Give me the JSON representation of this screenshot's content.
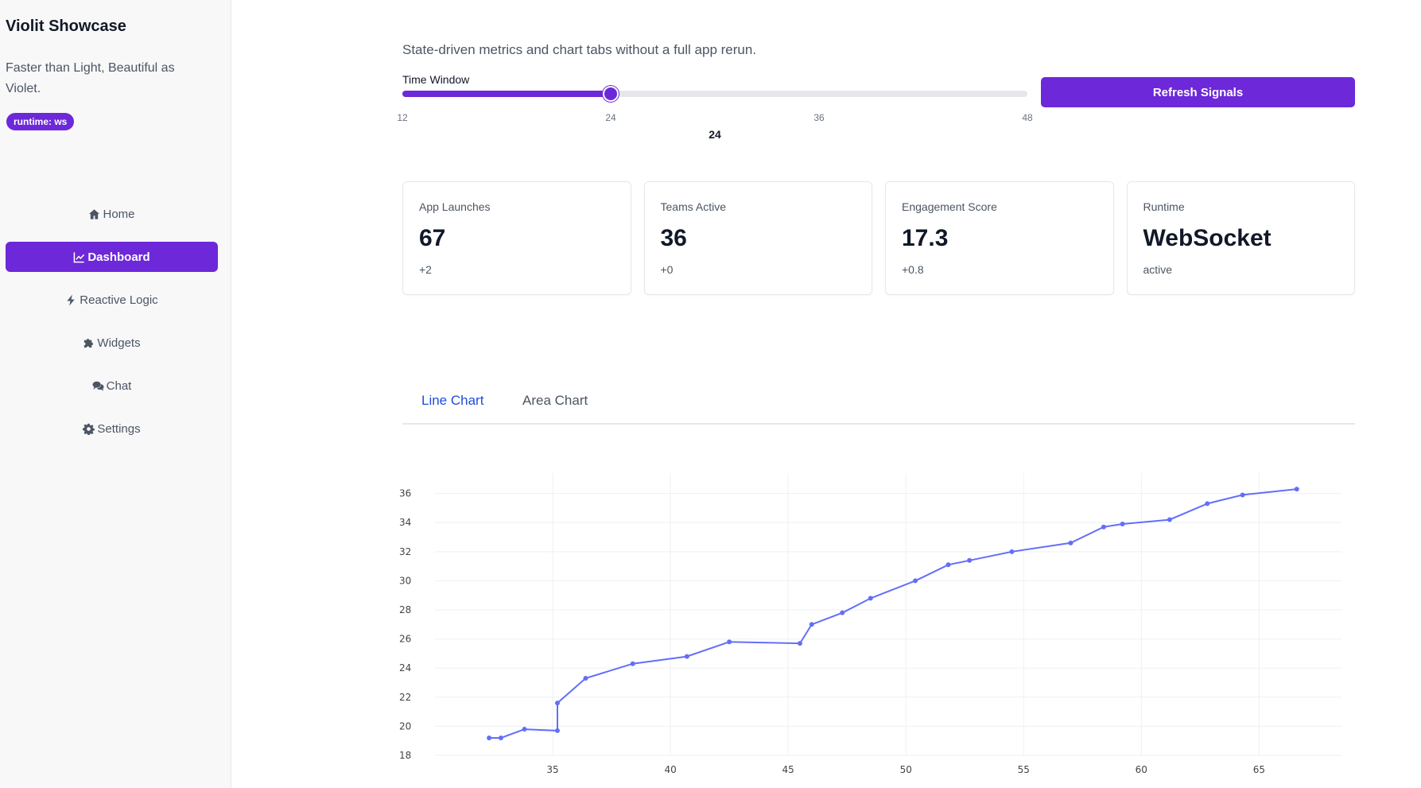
{
  "app": {
    "title": "Violit Showcase",
    "tagline": "Faster than Light, Beautiful as Violet.",
    "runtime_badge": "runtime: ws",
    "accent_color": "#6d28d9"
  },
  "nav": {
    "items": [
      {
        "label": "Home",
        "icon": "home-icon"
      },
      {
        "label": "Dashboard",
        "icon": "chart-line-icon",
        "active": true
      },
      {
        "label": "Reactive Logic",
        "icon": "bolt-icon"
      },
      {
        "label": "Widgets",
        "icon": "puzzle-icon"
      },
      {
        "label": "Chat",
        "icon": "comments-icon"
      },
      {
        "label": "Settings",
        "icon": "gear-icon"
      }
    ]
  },
  "main": {
    "subtitle": "State-driven metrics and chart tabs without a full app rerun.",
    "slider": {
      "label": "Time Window",
      "min": 12,
      "max": 48,
      "value": 24,
      "value_display": "24",
      "ticks": [
        "12",
        "24",
        "36",
        "48"
      ]
    },
    "refresh_button": "Refresh Signals",
    "metrics": [
      {
        "label": "App Launches",
        "value": "67",
        "delta": "+2"
      },
      {
        "label": "Teams Active",
        "value": "36",
        "delta": "+0"
      },
      {
        "label": "Engagement Score",
        "value": "17.3",
        "delta": "+0.8"
      },
      {
        "label": "Runtime",
        "value": "WebSocket",
        "delta": "active"
      }
    ],
    "tabs": [
      {
        "label": "Line Chart",
        "active": true
      },
      {
        "label": "Area Chart",
        "active": false
      }
    ]
  },
  "chart_data": {
    "type": "line",
    "line_color": "#636efa",
    "grid": true,
    "xlim": [
      30,
      68.5
    ],
    "ylim": [
      18,
      37.4
    ],
    "x_ticks": [
      35,
      40,
      45,
      50,
      55,
      60,
      65
    ],
    "y_ticks": [
      18,
      20,
      22,
      24,
      26,
      28,
      30,
      32,
      34,
      36
    ],
    "series": [
      {
        "x": [
          32.3,
          32.8,
          33.8,
          35.2,
          35.2,
          36.4,
          38.4,
          40.7,
          42.5,
          45.5,
          46.0,
          47.3,
          48.5,
          50.4,
          51.8,
          52.7,
          54.5,
          57.0,
          58.4,
          59.2,
          61.2,
          62.8,
          64.3,
          66.6
        ],
        "y": [
          19.2,
          19.2,
          19.8,
          19.7,
          21.6,
          23.3,
          24.3,
          24.8,
          25.8,
          25.7,
          27.0,
          27.8,
          28.8,
          30.0,
          31.1,
          31.4,
          32.0,
          32.6,
          33.7,
          33.9,
          34.2,
          35.3,
          35.9,
          36.3
        ]
      }
    ]
  }
}
